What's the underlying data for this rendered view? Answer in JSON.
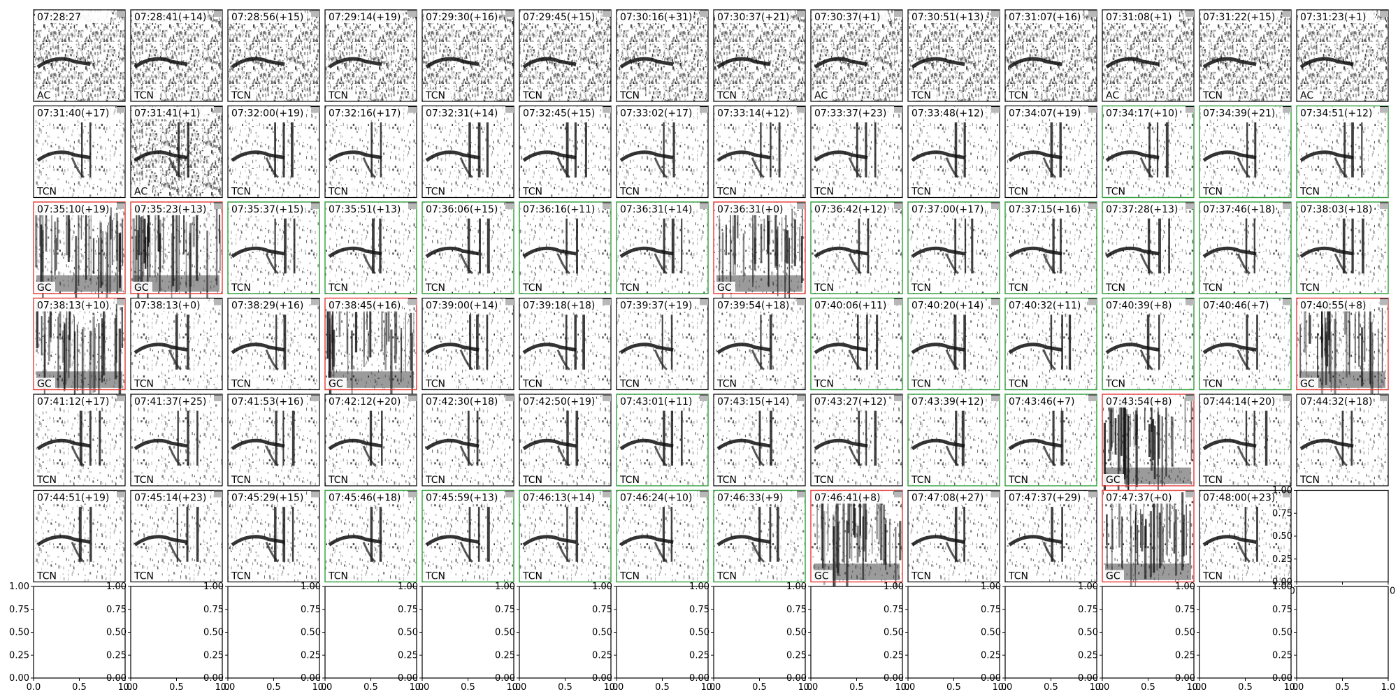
{
  "chart_data": {
    "type": "spectrogram-grid",
    "rows": 7,
    "cols": 14,
    "colors": {
      "GC": "#e53935",
      "TCN": "#2e9e3a",
      "AC": "#000000",
      "frame": "#000000"
    },
    "panels": [
      {
        "title": "07:28:27",
        "label": "AC",
        "frame": "AC"
      },
      {
        "title": "07:28:41(+14)",
        "label": "TCN",
        "frame": "AC"
      },
      {
        "title": "07:28:56(+15)",
        "label": "TCN",
        "frame": "AC"
      },
      {
        "title": "07:29:14(+19)",
        "label": "TCN",
        "frame": "AC"
      },
      {
        "title": "07:29:30(+16)",
        "label": "TCN",
        "frame": "AC"
      },
      {
        "title": "07:29:45(+15)",
        "label": "TCN",
        "frame": "AC"
      },
      {
        "title": "07:30:16(+31)",
        "label": "TCN",
        "frame": "AC"
      },
      {
        "title": "07:30:37(+21)",
        "label": "TCN",
        "frame": "AC"
      },
      {
        "title": "07:30:37(+1)",
        "label": "AC",
        "frame": "AC"
      },
      {
        "title": "07:30:51(+13)",
        "label": "TCN",
        "frame": "AC"
      },
      {
        "title": "07:31:07(+16)",
        "label": "TCN",
        "frame": "AC"
      },
      {
        "title": "07:31:08(+1)",
        "label": "AC",
        "frame": "AC"
      },
      {
        "title": "07:31:22(+15)",
        "label": "TCN",
        "frame": "AC"
      },
      {
        "title": "07:31:23(+1)",
        "label": "AC",
        "frame": "AC"
      },
      {
        "title": "07:31:40(+17)",
        "label": "TCN",
        "frame": "AC"
      },
      {
        "title": "07:31:41(+1)",
        "label": "AC",
        "frame": "AC"
      },
      {
        "title": "07:32:00(+19)",
        "label": "TCN",
        "frame": "AC"
      },
      {
        "title": "07:32:16(+17)",
        "label": "TCN",
        "frame": "AC"
      },
      {
        "title": "07:32:31(+14)",
        "label": "TCN",
        "frame": "AC"
      },
      {
        "title": "07:32:45(+15)",
        "label": "TCN",
        "frame": "AC"
      },
      {
        "title": "07:33:02(+17)",
        "label": "TCN",
        "frame": "AC"
      },
      {
        "title": "07:33:14(+12)",
        "label": "TCN",
        "frame": "AC"
      },
      {
        "title": "07:33:37(+23)",
        "label": "TCN",
        "frame": "AC"
      },
      {
        "title": "07:33:48(+12)",
        "label": "TCN",
        "frame": "AC"
      },
      {
        "title": "07:34:07(+19)",
        "label": "TCN",
        "frame": "AC"
      },
      {
        "title": "07:34:17(+10)",
        "label": "TCN",
        "frame": "TCN"
      },
      {
        "title": "07:34:39(+21)",
        "label": "TCN",
        "frame": "TCN"
      },
      {
        "title": "07:34:51(+12)",
        "label": "TCN",
        "frame": "TCN"
      },
      {
        "title": "07:35:10(+19)",
        "label": "GC",
        "frame": "GC"
      },
      {
        "title": "07:35:23(+13)",
        "label": "GC",
        "frame": "GC"
      },
      {
        "title": "07:35:37(+15)",
        "label": "TCN",
        "frame": "TCN"
      },
      {
        "title": "07:35:51(+13)",
        "label": "TCN",
        "frame": "TCN"
      },
      {
        "title": "07:36:06(+15)",
        "label": "TCN",
        "frame": "TCN"
      },
      {
        "title": "07:36:16(+11)",
        "label": "TCN",
        "frame": "TCN"
      },
      {
        "title": "07:36:31(+14)",
        "label": "TCN",
        "frame": "TCN"
      },
      {
        "title": "07:36:31(+0)",
        "label": "GC",
        "frame": "GC"
      },
      {
        "title": "07:36:42(+12)",
        "label": "TCN",
        "frame": "TCN"
      },
      {
        "title": "07:37:00(+17)",
        "label": "TCN",
        "frame": "TCN"
      },
      {
        "title": "07:37:15(+16)",
        "label": "TCN",
        "frame": "TCN"
      },
      {
        "title": "07:37:28(+13)",
        "label": "TCN",
        "frame": "TCN"
      },
      {
        "title": "07:37:46(+18)",
        "label": "TCN",
        "frame": "TCN"
      },
      {
        "title": "07:38:03(+18)",
        "label": "TCN",
        "frame": "TCN"
      },
      {
        "title": "07:38:13(+10)",
        "label": "GC",
        "frame": "GC"
      },
      {
        "title": "07:38:13(+0)",
        "label": "TCN",
        "frame": "AC"
      },
      {
        "title": "07:38:29(+16)",
        "label": "TCN",
        "frame": "AC"
      },
      {
        "title": "07:38:45(+16)",
        "label": "GC",
        "frame": "GC"
      },
      {
        "title": "07:39:00(+14)",
        "label": "TCN",
        "frame": "AC"
      },
      {
        "title": "07:39:18(+18)",
        "label": "TCN",
        "frame": "AC"
      },
      {
        "title": "07:39:37(+19)",
        "label": "TCN",
        "frame": "AC"
      },
      {
        "title": "07:39:54(+18)",
        "label": "TCN",
        "frame": "AC"
      },
      {
        "title": "07:40:06(+11)",
        "label": "TCN",
        "frame": "TCN"
      },
      {
        "title": "07:40:20(+14)",
        "label": "TCN",
        "frame": "TCN"
      },
      {
        "title": "07:40:32(+11)",
        "label": "TCN",
        "frame": "TCN"
      },
      {
        "title": "07:40:39(+8)",
        "label": "TCN",
        "frame": "TCN"
      },
      {
        "title": "07:40:46(+7)",
        "label": "TCN",
        "frame": "TCN"
      },
      {
        "title": "07:40:55(+8)",
        "label": "GC",
        "frame": "GC"
      },
      {
        "title": "07:41:12(+17)",
        "label": "TCN",
        "frame": "AC"
      },
      {
        "title": "07:41:37(+25)",
        "label": "TCN",
        "frame": "AC"
      },
      {
        "title": "07:41:53(+16)",
        "label": "TCN",
        "frame": "AC"
      },
      {
        "title": "07:42:12(+20)",
        "label": "TCN",
        "frame": "AC"
      },
      {
        "title": "07:42:30(+18)",
        "label": "TCN",
        "frame": "AC"
      },
      {
        "title": "07:42:50(+19)",
        "label": "TCN",
        "frame": "AC"
      },
      {
        "title": "07:43:01(+11)",
        "label": "TCN",
        "frame": "TCN"
      },
      {
        "title": "07:43:15(+14)",
        "label": "TCN",
        "frame": "AC"
      },
      {
        "title": "07:43:27(+12)",
        "label": "TCN",
        "frame": "AC"
      },
      {
        "title": "07:43:39(+12)",
        "label": "TCN",
        "frame": "TCN"
      },
      {
        "title": "07:43:46(+7)",
        "label": "TCN",
        "frame": "TCN"
      },
      {
        "title": "07:43:54(+8)",
        "label": "GC",
        "frame": "GC"
      },
      {
        "title": "07:44:14(+20)",
        "label": "TCN",
        "frame": "AC"
      },
      {
        "title": "07:44:32(+18)",
        "label": "TCN",
        "frame": "AC"
      },
      {
        "title": "07:44:51(+19)",
        "label": "TCN",
        "frame": "AC"
      },
      {
        "title": "07:45:14(+23)",
        "label": "TCN",
        "frame": "AC"
      },
      {
        "title": "07:45:29(+15)",
        "label": "TCN",
        "frame": "AC"
      },
      {
        "title": "07:45:46(+18)",
        "label": "TCN",
        "frame": "TCN"
      },
      {
        "title": "07:45:59(+13)",
        "label": "TCN",
        "frame": "TCN"
      },
      {
        "title": "07:46:13(+14)",
        "label": "TCN",
        "frame": "TCN"
      },
      {
        "title": "07:46:24(+10)",
        "label": "TCN",
        "frame": "TCN"
      },
      {
        "title": "07:46:33(+9)",
        "label": "TCN",
        "frame": "TCN"
      },
      {
        "title": "07:46:41(+8)",
        "label": "GC",
        "frame": "GC"
      },
      {
        "title": "07:47:08(+27)",
        "label": "TCN",
        "frame": "AC"
      },
      {
        "title": "07:47:37(+29)",
        "label": "TCN",
        "frame": "AC"
      },
      {
        "title": "07:47:37(+0)",
        "label": "GC",
        "frame": "GC"
      },
      {
        "title": "07:48:00(+23)",
        "label": "TCN",
        "frame": "AC"
      }
    ],
    "empty_axes": {
      "xlim": [
        0.0,
        1.0
      ],
      "ylim": [
        0.0,
        1.0
      ],
      "xticks": [
        "0.0",
        "0.5",
        "1.0"
      ],
      "yticks": [
        "0.00",
        "0.25",
        "0.50",
        "0.75",
        "1.00"
      ]
    }
  }
}
